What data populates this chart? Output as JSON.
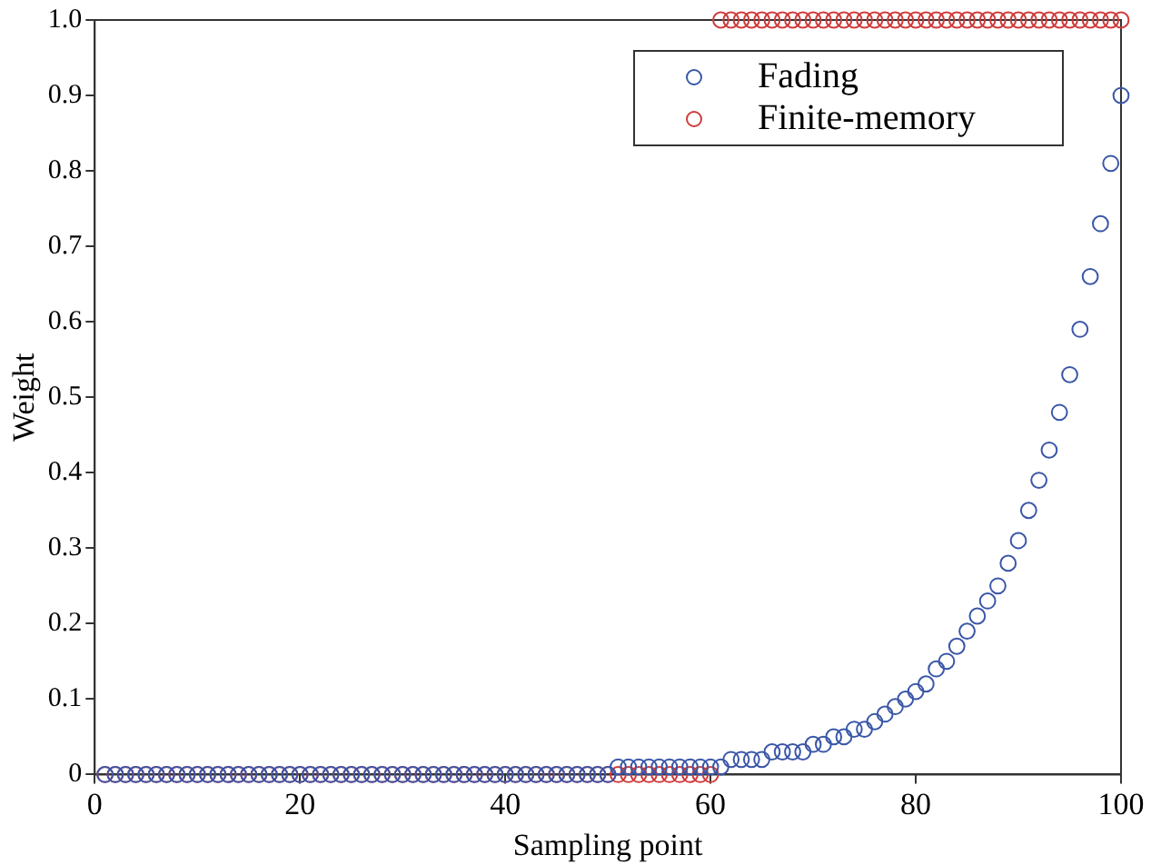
{
  "chart_data": {
    "type": "scatter",
    "xlabel": "Sampling point",
    "ylabel": "Weight",
    "x": [
      1,
      2,
      3,
      4,
      5,
      6,
      7,
      8,
      9,
      10,
      11,
      12,
      13,
      14,
      15,
      16,
      17,
      18,
      19,
      20,
      21,
      22,
      23,
      24,
      25,
      26,
      27,
      28,
      29,
      30,
      31,
      32,
      33,
      34,
      35,
      36,
      37,
      38,
      39,
      40,
      41,
      42,
      43,
      44,
      45,
      46,
      47,
      48,
      49,
      50,
      51,
      52,
      53,
      54,
      55,
      56,
      57,
      58,
      59,
      60,
      61,
      62,
      63,
      64,
      65,
      66,
      67,
      68,
      69,
      70,
      71,
      72,
      73,
      74,
      75,
      76,
      77,
      78,
      79,
      80,
      81,
      82,
      83,
      84,
      85,
      86,
      87,
      88,
      89,
      90,
      91,
      92,
      93,
      94,
      95,
      96,
      97,
      98,
      99,
      100
    ],
    "series": [
      {
        "name": "Fading",
        "color": "#3a56a8",
        "values": [
          0,
          0,
          0,
          0,
          0,
          0,
          0,
          0,
          0,
          0,
          0,
          0,
          0,
          0,
          0,
          0,
          0,
          0,
          0,
          0,
          0,
          0,
          0,
          0,
          0,
          0,
          0,
          0,
          0,
          0,
          0,
          0,
          0,
          0,
          0,
          0,
          0,
          0,
          0,
          0,
          0,
          0,
          0,
          0,
          0,
          0,
          0,
          0,
          0,
          0,
          0.01,
          0.01,
          0.01,
          0.01,
          0.01,
          0.01,
          0.01,
          0.01,
          0.01,
          0.01,
          0.01,
          0.02,
          0.02,
          0.02,
          0.02,
          0.03,
          0.03,
          0.03,
          0.03,
          0.04,
          0.04,
          0.05,
          0.05,
          0.06,
          0.06,
          0.07,
          0.08,
          0.09,
          0.1,
          0.11,
          0.12,
          0.14,
          0.15,
          0.17,
          0.19,
          0.21,
          0.23,
          0.25,
          0.28,
          0.31,
          0.35,
          0.39,
          0.43,
          0.48,
          0.53,
          0.59,
          0.66,
          0.73,
          0.81,
          0.9
        ]
      },
      {
        "name": "Finite-memory",
        "color": "#d03a3a",
        "values": [
          0,
          0,
          0,
          0,
          0,
          0,
          0,
          0,
          0,
          0,
          0,
          0,
          0,
          0,
          0,
          0,
          0,
          0,
          0,
          0,
          0,
          0,
          0,
          0,
          0,
          0,
          0,
          0,
          0,
          0,
          0,
          0,
          0,
          0,
          0,
          0,
          0,
          0,
          0,
          0,
          0,
          0,
          0,
          0,
          0,
          0,
          0,
          0,
          0,
          0,
          0,
          0,
          0,
          0,
          0,
          0,
          0,
          0,
          0,
          0,
          1,
          1,
          1,
          1,
          1,
          1,
          1,
          1,
          1,
          1,
          1,
          1,
          1,
          1,
          1,
          1,
          1,
          1,
          1,
          1,
          1,
          1,
          1,
          1,
          1,
          1,
          1,
          1,
          1,
          1,
          1,
          1,
          1,
          1,
          1,
          1,
          1,
          1,
          1,
          1
        ]
      }
    ],
    "xlim": [
      0,
      100
    ],
    "xticks": [
      0,
      20,
      40,
      60,
      80,
      100
    ],
    "ylim": [
      0,
      1
    ],
    "yticks": [
      0,
      0.1,
      0.2,
      0.3,
      0.4,
      0.5,
      0.6,
      0.7,
      0.8,
      0.9,
      {
        "value": 1,
        "label": "1.0"
      }
    ],
    "grid": false,
    "legend": "top right",
    "marker": "circle"
  }
}
